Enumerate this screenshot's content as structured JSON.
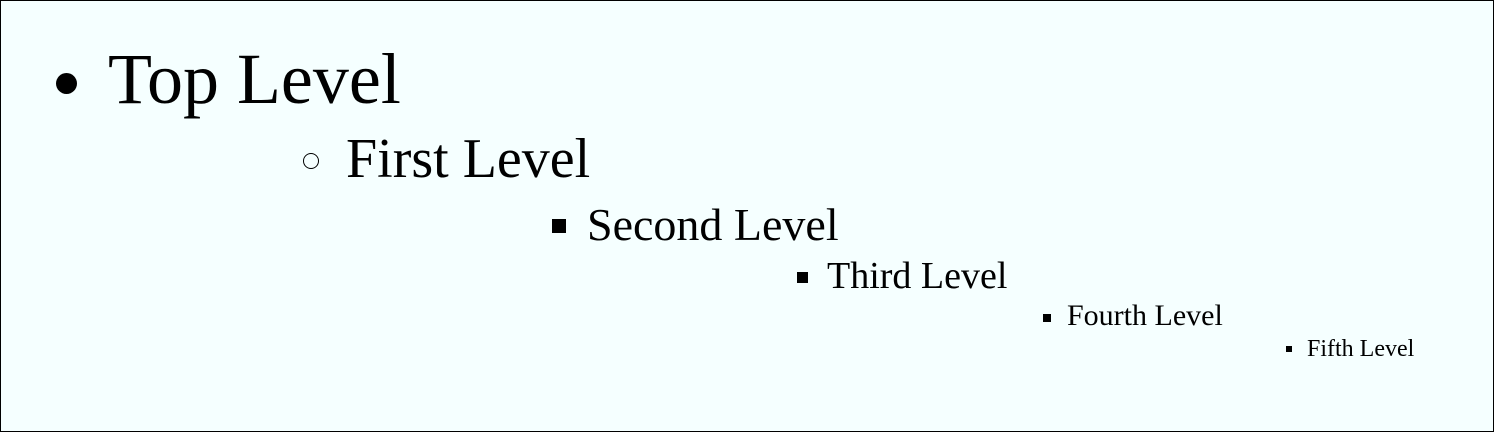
{
  "list": {
    "items": [
      {
        "label": "Top Level",
        "marker": "disc"
      },
      {
        "label": "First Level",
        "marker": "circle"
      },
      {
        "label": "Second Level",
        "marker": "square"
      },
      {
        "label": "Third Level",
        "marker": "square"
      },
      {
        "label": "Fourth Level",
        "marker": "square"
      },
      {
        "label": "Fifth Level",
        "marker": "square"
      }
    ]
  },
  "colors": {
    "background": "#f5ffff",
    "border": "#000000",
    "text": "#000000"
  }
}
